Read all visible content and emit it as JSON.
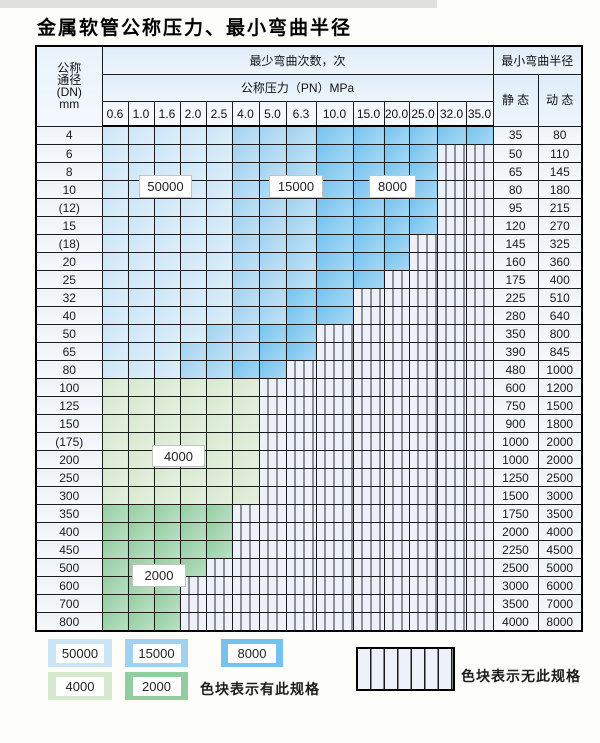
{
  "title": "金属软管公称压力、最小弯曲半径",
  "colors": {
    "c50000": "#cbe5f7",
    "c15000": "#9fd1f0",
    "c8000": "#74c2ee",
    "c4000": "#d6e8ce",
    "c2000": "#92cda0",
    "chatch": "#edf2fa",
    "hdr": "#dfedf9"
  },
  "table": {
    "corner_lines": [
      "公称",
      "通径",
      "(DN)",
      "mm"
    ],
    "bend_header": "最少弯曲次数，次",
    "pressure_header": "公称压力（PN）MPa",
    "radius_header": "最小弯曲半径",
    "static_label": "静 态",
    "dynamic_label": "动 态",
    "pressures": [
      "0.6",
      "1.0",
      "1.6",
      "2.0",
      "2.5",
      "4.0",
      "5.0",
      "6.3",
      "10.0",
      "15.0",
      "20.0",
      "25.0",
      "32.0",
      "35.0"
    ],
    "code_meaning": {
      "A": "50000 次",
      "B": "15000 次",
      "C": "8000 次",
      "D": "4000 次",
      "E": "2000 次",
      ".": "无此规格"
    },
    "rows": [
      {
        "dn": "4",
        "pattern": "AAAAABBBCCCCCC",
        "static": "35",
        "dynamic": "80"
      },
      {
        "dn": "6",
        "pattern": "AAAAABBBCCCC..",
        "static": "50",
        "dynamic": "110"
      },
      {
        "dn": "8",
        "pattern": "AAAAABBBCCCC..",
        "static": "65",
        "dynamic": "145"
      },
      {
        "dn": "10",
        "pattern": "AAAAABBBCCCC..",
        "static": "80",
        "dynamic": "180"
      },
      {
        "dn": "(12)",
        "pattern": "AAAAABBBCCCC..",
        "static": "95",
        "dynamic": "215"
      },
      {
        "dn": "15",
        "pattern": "AAAAABBBCCCC..",
        "static": "120",
        "dynamic": "270"
      },
      {
        "dn": "(18)",
        "pattern": "AAAAABBBCCC...",
        "static": "145",
        "dynamic": "325"
      },
      {
        "dn": "20",
        "pattern": "AAAAABBBCCC...",
        "static": "160",
        "dynamic": "360"
      },
      {
        "dn": "25",
        "pattern": "AAAAABBBCC....",
        "static": "175",
        "dynamic": "400"
      },
      {
        "dn": "32",
        "pattern": "AAAAABBCC.....",
        "static": "225",
        "dynamic": "510"
      },
      {
        "dn": "40",
        "pattern": "AAAAABBCC.....",
        "static": "280",
        "dynamic": "640"
      },
      {
        "dn": "50",
        "pattern": "AAAABBCC......",
        "static": "350",
        "dynamic": "800"
      },
      {
        "dn": "65",
        "pattern": "AAABBBCC......",
        "static": "390",
        "dynamic": "845"
      },
      {
        "dn": "80",
        "pattern": "AAABBCC.......",
        "static": "480",
        "dynamic": "1000"
      },
      {
        "dn": "100",
        "pattern": "DDDDDD........",
        "static": "600",
        "dynamic": "1200"
      },
      {
        "dn": "125",
        "pattern": "DDDDDD........",
        "static": "750",
        "dynamic": "1500"
      },
      {
        "dn": "150",
        "pattern": "DDDDDD........",
        "static": "900",
        "dynamic": "1800"
      },
      {
        "dn": "(175)",
        "pattern": "DDDDDD........",
        "static": "1000",
        "dynamic": "2000"
      },
      {
        "dn": "200",
        "pattern": "DDDDDD........",
        "static": "1000",
        "dynamic": "2000"
      },
      {
        "dn": "250",
        "pattern": "DDDDDD........",
        "static": "1250",
        "dynamic": "2500"
      },
      {
        "dn": "300",
        "pattern": "DDDDDD........",
        "static": "1500",
        "dynamic": "3000"
      },
      {
        "dn": "350",
        "pattern": "EEEEE.........",
        "static": "1750",
        "dynamic": "3500"
      },
      {
        "dn": "400",
        "pattern": "EEEEE.........",
        "static": "2000",
        "dynamic": "4000"
      },
      {
        "dn": "450",
        "pattern": "EEEEE.........",
        "static": "2250",
        "dynamic": "4500"
      },
      {
        "dn": "500",
        "pattern": "EEEE..........",
        "static": "2500",
        "dynamic": "5000"
      },
      {
        "dn": "600",
        "pattern": "EEE...........",
        "static": "3000",
        "dynamic": "6000"
      },
      {
        "dn": "700",
        "pattern": "EEE...........",
        "static": "3500",
        "dynamic": "7000"
      },
      {
        "dn": "800",
        "pattern": "EEE...........",
        "static": "4000",
        "dynamic": "8000"
      }
    ]
  },
  "overlays": {
    "l50000": "50000",
    "l15000": "15000",
    "l8000": "8000",
    "l4000": "4000",
    "l2000": "2000"
  },
  "legend": {
    "items": [
      {
        "value": "50000",
        "color": "#cbe5f7"
      },
      {
        "value": "15000",
        "color": "#9fd1f0"
      },
      {
        "value": "8000",
        "color": "#74c2ee"
      },
      {
        "value": "4000",
        "color": "#d6e8ce"
      },
      {
        "value": "2000",
        "color": "#92cda0"
      }
    ],
    "has_spec_text": "色块表示有此规格",
    "no_spec_text": "色块表示无此规格"
  }
}
